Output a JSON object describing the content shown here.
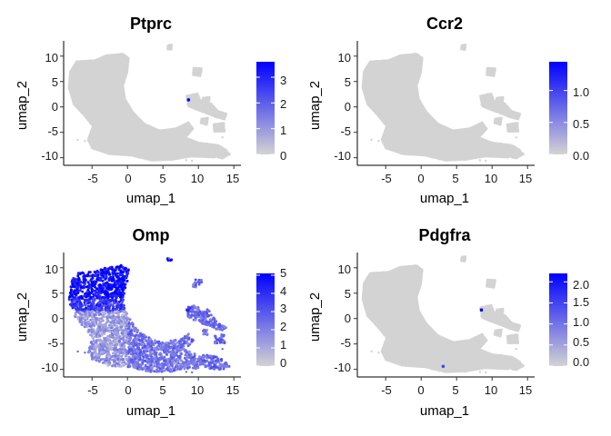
{
  "chart_data": [
    {
      "type": "scatter",
      "title": "Ptprc",
      "xlabel": "umap_1",
      "ylabel": "umap_2",
      "xlim": [
        -9,
        16
      ],
      "ylim": [
        -11.5,
        13
      ],
      "xticks": [
        -5,
        0,
        5,
        10,
        15
      ],
      "yticks": [
        10,
        5,
        0,
        -5,
        -10
      ],
      "grid": false,
      "color_scale": {
        "low": "#d3d3d3",
        "high": "#0000ff",
        "min": 0,
        "max": 3.6,
        "ticks": [
          3,
          2,
          1,
          0
        ]
      },
      "highlight_points": [
        {
          "x": 8.6,
          "y": 1.4,
          "value": 3.6
        }
      ],
      "expression_pattern": "none"
    },
    {
      "type": "scatter",
      "title": "Ccr2",
      "xlabel": "umap_1",
      "ylabel": "umap_2",
      "xlim": [
        -9,
        16
      ],
      "ylim": [
        -11.5,
        13
      ],
      "xticks": [
        -5,
        0,
        5,
        10,
        15
      ],
      "yticks": [
        10,
        5,
        0,
        -5,
        -10
      ],
      "grid": false,
      "color_scale": {
        "low": "#d3d3d3",
        "high": "#0000ff",
        "min": 0,
        "max": 1.45,
        "ticks": [
          "1.0",
          "0.5",
          "0.0"
        ]
      },
      "highlight_points": [],
      "expression_pattern": "none"
    },
    {
      "type": "scatter",
      "title": "Omp",
      "xlabel": "umap_1",
      "ylabel": "umap_2",
      "xlim": [
        -9,
        16
      ],
      "ylim": [
        -11.5,
        13
      ],
      "xticks": [
        -5,
        0,
        5,
        10,
        15
      ],
      "yticks": [
        10,
        5,
        0,
        -5,
        -10
      ],
      "grid": false,
      "color_scale": {
        "low": "#d3d3d3",
        "high": "#0000ff",
        "min": 0,
        "max": 5.1,
        "ticks": [
          5,
          4,
          3,
          2,
          1,
          0
        ]
      },
      "highlight_points": [],
      "expression_pattern": "broad"
    },
    {
      "type": "scatter",
      "title": "Pdgfra",
      "xlabel": "umap_1",
      "ylabel": "umap_2",
      "xlim": [
        -9,
        16
      ],
      "ylim": [
        -11.5,
        13
      ],
      "xticks": [
        -5,
        0,
        5,
        10,
        15
      ],
      "yticks": [
        10,
        5,
        0,
        -5,
        -10
      ],
      "grid": false,
      "color_scale": {
        "low": "#d3d3d3",
        "high": "#0000ff",
        "min": 0,
        "max": 2.2,
        "ticks": [
          "2.0",
          "1.5",
          "1.0",
          "0.5",
          "0.0"
        ]
      },
      "highlight_points": [
        {
          "x": 8.5,
          "y": 1.7,
          "value": 2.2
        },
        {
          "x": 3.1,
          "y": -9.4,
          "value": 1.5
        }
      ],
      "expression_pattern": "none"
    }
  ]
}
